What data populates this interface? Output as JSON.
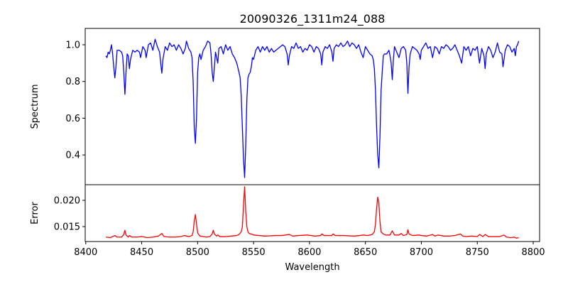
{
  "chart_data": [
    {
      "type": "line",
      "title": "20090326_1311m24_088",
      "xlabel": "",
      "ylabel": "Spectrum",
      "xlim": [
        8399.5,
        8805.7
      ],
      "ylim": [
        0.238,
        1.089
      ],
      "yticks": [
        "0.4",
        "0.6",
        "0.8",
        "1.0"
      ],
      "grid": false,
      "color": "#0000ff",
      "x": [
        8418,
        8419,
        8420,
        8421,
        8422,
        8423,
        8424,
        8425,
        8426,
        8427,
        8428,
        8430,
        8432,
        8433,
        8434,
        8435,
        8436,
        8437,
        8438,
        8439,
        8440,
        8442,
        8444,
        8446,
        8448,
        8449,
        8451,
        8453,
        8454,
        8456,
        8458,
        8460,
        8462,
        8464,
        8466,
        8467,
        8468,
        8469,
        8471,
        8473,
        8475,
        8477,
        8479,
        8481,
        8483,
        8485,
        8487,
        8489,
        8490,
        8492,
        8494,
        8495,
        8496,
        8497,
        8498,
        8499,
        8500,
        8501,
        8502,
        8503,
        8505,
        8507,
        8509,
        8511,
        8512,
        8513,
        8514,
        8515,
        8516,
        8518,
        8519,
        8521,
        8523,
        8525,
        8527,
        8529,
        8531,
        8533,
        8535,
        8537,
        8538,
        8539,
        8540,
        8541,
        8542,
        8543,
        8544,
        8545,
        8546,
        8547,
        8548,
        8549,
        8550,
        8552,
        8554,
        8556,
        8558,
        8560,
        8562,
        8564,
        8566,
        8568,
        8570,
        8572,
        8574,
        8576,
        8578,
        8580,
        8581,
        8582,
        8584,
        8586,
        8588,
        8590,
        8592,
        8594,
        8596,
        8598,
        8600,
        8602,
        8604,
        8606,
        8608,
        8610,
        8611,
        8612,
        8614,
        8616,
        8618,
        8620,
        8621,
        8622,
        8624,
        8626,
        8628,
        8630,
        8632,
        8634,
        8636,
        8638,
        8640,
        8642,
        8644,
        8646,
        8648,
        8650,
        8652,
        8654,
        8656,
        8657,
        8658,
        8659,
        8660,
        8661,
        8662,
        8663,
        8664,
        8665,
        8666,
        8667,
        8669,
        8671,
        8672,
        8673,
        8674,
        8675,
        8676,
        8678,
        8680,
        8682,
        8684,
        8686,
        8687,
        8688,
        8689,
        8690,
        8692,
        8694,
        8696,
        8698,
        8699,
        8700,
        8702,
        8704,
        8706,
        8708,
        8710,
        8712,
        8714,
        8716,
        8718,
        8720,
        8722,
        8724,
        8726,
        8728,
        8730,
        8732,
        8734,
        8736,
        8738,
        8740,
        8742,
        8744,
        8746,
        8748,
        8750,
        8752,
        8754,
        8756,
        8757,
        8758,
        8760,
        8762,
        8764,
        8766,
        8768,
        8770,
        8772,
        8773,
        8775,
        8777,
        8779,
        8781,
        8783,
        8784,
        8785,
        8786,
        8787
      ],
      "y": [
        0.94,
        0.93,
        0.96,
        0.95,
        0.97,
        1.0,
        0.95,
        0.88,
        0.82,
        0.88,
        0.97,
        0.97,
        0.96,
        0.94,
        0.85,
        0.73,
        0.85,
        0.95,
        0.94,
        0.87,
        0.92,
        0.97,
        0.96,
        0.97,
        0.96,
        0.93,
        0.99,
        0.97,
        0.93,
        1.0,
        1.01,
        0.97,
        1.03,
        0.99,
        0.96,
        0.9,
        0.845,
        0.92,
        0.99,
        0.97,
        1.01,
        0.99,
        1.0,
        0.97,
        1.0,
        0.98,
        0.95,
        0.98,
        1.02,
        0.98,
        0.96,
        0.93,
        0.8,
        0.55,
        0.463,
        0.6,
        0.85,
        0.93,
        0.95,
        0.92,
        0.97,
        0.99,
        1.02,
        1.01,
        0.95,
        0.85,
        0.8,
        0.88,
        0.96,
        0.9,
        0.98,
        0.99,
        0.95,
        1.0,
        0.97,
        0.99,
        0.95,
        0.93,
        0.9,
        0.85,
        0.82,
        0.72,
        0.55,
        0.38,
        0.277,
        0.45,
        0.7,
        0.82,
        0.84,
        0.85,
        0.88,
        0.93,
        0.92,
        0.97,
        0.99,
        0.96,
        0.99,
        0.97,
        0.99,
        0.96,
        0.98,
        0.96,
        0.97,
        0.98,
        0.99,
        1.0,
        0.99,
        0.95,
        0.89,
        0.94,
        0.99,
        0.98,
        1.01,
        0.98,
        0.99,
        0.96,
        0.98,
        0.97,
        1.0,
        0.99,
        0.96,
        0.99,
        0.98,
        0.95,
        0.89,
        0.96,
        0.99,
        0.98,
        1.0,
        0.96,
        0.91,
        0.98,
        1.0,
        0.99,
        1.01,
        0.99,
        1.0,
        1.02,
        0.99,
        1.01,
        1.0,
        0.98,
        1.0,
        0.96,
        0.93,
        0.99,
        0.97,
        0.95,
        0.94,
        0.92,
        0.87,
        0.75,
        0.55,
        0.4,
        0.33,
        0.5,
        0.75,
        0.85,
        0.94,
        0.95,
        0.95,
        0.97,
        0.94,
        0.9,
        0.81,
        0.92,
        0.99,
        0.96,
        0.93,
        0.98,
        0.99,
        0.97,
        0.9,
        0.735,
        0.88,
        0.95,
        0.99,
        0.98,
        0.97,
        0.95,
        0.92,
        0.97,
        0.99,
        1.01,
        0.98,
        0.99,
        0.93,
        0.99,
        0.98,
        0.95,
        0.99,
        0.98,
        1.0,
        0.99,
        0.97,
        0.98,
        1.0,
        0.97,
        0.94,
        0.9,
        0.99,
        0.97,
        0.99,
        0.94,
        0.98,
        0.97,
        0.99,
        0.9,
        0.98,
        0.94,
        0.87,
        0.95,
        0.99,
        0.97,
        0.93,
        0.96,
        1.01,
        0.96,
        0.95,
        0.88,
        0.97,
        1.0,
        0.99,
        0.96,
        0.98,
        0.94,
        0.99,
        1.0,
        1.02
      ]
    },
    {
      "type": "line",
      "title": "",
      "xlabel": "Wavelength",
      "ylabel": "Error",
      "xlim": [
        8399.5,
        8805.7
      ],
      "ylim": [
        0.01216,
        0.02297
      ],
      "xticks": [
        "8400",
        "8450",
        "8500",
        "8550",
        "8600",
        "8650",
        "8700",
        "8750",
        "8800"
      ],
      "yticks": [
        "0.015",
        "0.020"
      ],
      "grid": false,
      "color": "#ff0000",
      "x": [
        8418,
        8422,
        8426,
        8428,
        8432,
        8434,
        8435,
        8436,
        8438,
        8439,
        8441,
        8446,
        8450,
        8455,
        8460,
        8465,
        8468,
        8470,
        8475,
        8480,
        8485,
        8488,
        8492,
        8495,
        8496,
        8497,
        8498,
        8499,
        8500,
        8502,
        8505,
        8508,
        8511,
        8513,
        8514,
        8515,
        8517,
        8518,
        8520,
        8525,
        8530,
        8535,
        8537,
        8539,
        8540,
        8541,
        8542,
        8543,
        8544,
        8545,
        8546,
        8548,
        8550,
        8555,
        8560,
        8570,
        8575,
        8582,
        8585,
        8590,
        8598,
        8605,
        8610,
        8611,
        8613,
        8620,
        8621,
        8623,
        8630,
        8640,
        8645,
        8648,
        8652,
        8656,
        8658,
        8659,
        8660,
        8661,
        8662,
        8663,
        8664,
        8666,
        8668,
        8672,
        8674,
        8676,
        8680,
        8682,
        8684,
        8687,
        8688,
        8689,
        8692,
        8698,
        8700,
        8705,
        8710,
        8712,
        8715,
        8720,
        8725,
        8730,
        8735,
        8737,
        8740,
        8745,
        8750,
        8752,
        8755,
        8757,
        8760,
        8765,
        8770,
        8774,
        8776,
        8780,
        8783,
        8785,
        8787
      ],
      "y": [
        0.013,
        0.0129,
        0.0133,
        0.013,
        0.013,
        0.0135,
        0.0143,
        0.0134,
        0.013,
        0.0133,
        0.013,
        0.013,
        0.0131,
        0.0129,
        0.013,
        0.0132,
        0.0137,
        0.0131,
        0.013,
        0.013,
        0.0131,
        0.0133,
        0.0131,
        0.0133,
        0.014,
        0.016,
        0.0173,
        0.0155,
        0.0138,
        0.0132,
        0.0131,
        0.013,
        0.0131,
        0.0136,
        0.0143,
        0.0136,
        0.0132,
        0.0134,
        0.0131,
        0.0131,
        0.0132,
        0.0133,
        0.0135,
        0.014,
        0.015,
        0.019,
        0.0226,
        0.018,
        0.015,
        0.014,
        0.0137,
        0.0136,
        0.0134,
        0.0133,
        0.0132,
        0.0133,
        0.0133,
        0.0135,
        0.0132,
        0.0133,
        0.0134,
        0.0132,
        0.0133,
        0.0136,
        0.0133,
        0.0133,
        0.0136,
        0.0133,
        0.0133,
        0.0132,
        0.0133,
        0.0134,
        0.0133,
        0.0135,
        0.014,
        0.0155,
        0.0185,
        0.0206,
        0.0195,
        0.016,
        0.014,
        0.0136,
        0.0134,
        0.0134,
        0.0142,
        0.0134,
        0.0134,
        0.0137,
        0.0133,
        0.0135,
        0.0144,
        0.0136,
        0.0133,
        0.0134,
        0.0133,
        0.0132,
        0.0135,
        0.0132,
        0.0134,
        0.0132,
        0.0132,
        0.0133,
        0.0136,
        0.0132,
        0.0131,
        0.0132,
        0.0131,
        0.0135,
        0.0131,
        0.0135,
        0.0131,
        0.0131,
        0.0131,
        0.0134,
        0.013,
        0.0129,
        0.013,
        0.0128,
        0.0129
      ]
    }
  ]
}
